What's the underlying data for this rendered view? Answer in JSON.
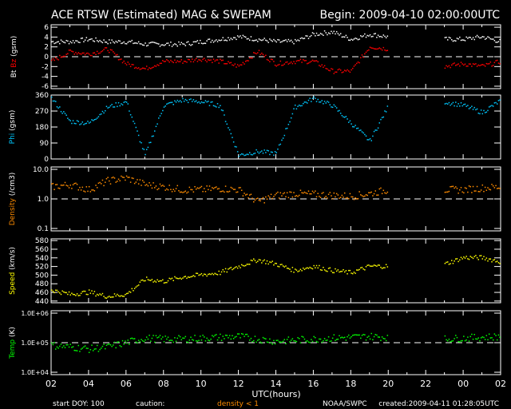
{
  "chart_data": {
    "type": "scatter",
    "title": "ACE RTSW (Estimated) MAG & SWEPAM",
    "begin": "Begin: 2009-04-10 02:00:00UTC",
    "xlabel": "UTC(hours)",
    "x_hours": [
      0,
      1,
      2,
      3,
      4,
      5,
      6,
      7,
      8,
      9,
      10,
      11,
      12,
      13,
      14,
      15,
      16,
      17,
      18,
      19,
      20,
      21,
      22,
      23,
      24
    ],
    "x_tick_labels": [
      "02",
      "04",
      "06",
      "08",
      "10",
      "12",
      "14",
      "16",
      "18",
      "20",
      "22",
      "00",
      "02"
    ],
    "panels": [
      {
        "id": "mag",
        "ylabel_parts": [
          "Bt",
          "Bz",
          "(gsm)"
        ],
        "scale": "linear",
        "ylim": [
          -6.5,
          6.5
        ],
        "ticks": [
          6,
          4,
          2,
          0,
          -2,
          -4,
          -6
        ],
        "tick_labels": [
          "6",
          "4",
          "2",
          "0",
          "-2",
          "-4",
          "-6"
        ],
        "ref": 0,
        "series": [
          {
            "name": "Bt",
            "color": "#ffffff",
            "values": [
              3,
              3,
              3.5,
              3,
              3,
              2.5,
              2.5,
              2.5,
              3,
              3.5,
              4,
              3.5,
              3,
              3,
              4.5,
              5,
              3.5,
              4.5,
              4,
              null,
              null,
              3.5,
              3.5,
              4,
              3
            ]
          },
          {
            "name": "Bz",
            "color": "#ff0000",
            "values": [
              -1,
              1,
              0.5,
              1.5,
              -1.5,
              -2.5,
              -1,
              -1,
              -0.5,
              -1,
              -2,
              1,
              -1.5,
              -1,
              -1,
              -3,
              -3,
              2,
              1.5,
              null,
              null,
              -2,
              -1.5,
              -2,
              -1
            ]
          }
        ]
      },
      {
        "id": "phi",
        "ylabel_parts": [
          "Phi",
          "(gsm)"
        ],
        "scale": "linear",
        "ylim": [
          0,
          360
        ],
        "ticks": [
          360,
          270,
          180,
          90,
          0
        ],
        "tick_labels": [
          "360",
          "270",
          "180",
          "90",
          "0"
        ],
        "ref": null,
        "series": [
          {
            "name": "Phi",
            "color": "#00c8ff",
            "values": [
              340,
              210,
              200,
              290,
              320,
              20,
              300,
              330,
              320,
              300,
              20,
              40,
              30,
              290,
              340,
              300,
              200,
              100,
              300,
              null,
              null,
              320,
              300,
              260,
              330
            ]
          }
        ]
      },
      {
        "id": "density",
        "ylabel_parts": [
          "Density",
          "(/cm3)"
        ],
        "scale": "log",
        "ylim": [
          0.1,
          10
        ],
        "ticks": [
          10,
          1,
          0.1
        ],
        "tick_labels": [
          "10.0",
          "1.0",
          "0.1"
        ],
        "ref": 1,
        "series": [
          {
            "name": "Density",
            "color": "#ff8c00",
            "values": [
              2.5,
              3,
              2,
              4,
              5,
              3,
              2.5,
              2,
              2,
              2.2,
              2,
              0.8,
              1.3,
              1.5,
              1.4,
              1.3,
              1.2,
              1.5,
              2,
              null,
              null,
              2,
              2,
              2.3,
              2.5
            ]
          }
        ]
      },
      {
        "id": "speed",
        "ylabel_parts": [
          "Speed",
          "(km/s)"
        ],
        "scale": "linear",
        "ylim": [
          436,
          584
        ],
        "ticks": [
          580,
          560,
          540,
          520,
          500,
          480,
          460,
          440
        ],
        "tick_labels": [
          "580",
          "560",
          "540",
          "520",
          "500",
          "480",
          "460",
          "440"
        ],
        "ref": null,
        "series": [
          {
            "name": "Speed",
            "color": "#ffff00",
            "values": [
              465,
              455,
              460,
              450,
              455,
              490,
              485,
              495,
              500,
              505,
              520,
              535,
              525,
              510,
              520,
              510,
              505,
              520,
              520,
              null,
              null,
              525,
              540,
              540,
              530
            ]
          }
        ]
      },
      {
        "id": "temp",
        "ylabel_parts": [
          "Temp",
          "(K)"
        ],
        "scale": "log",
        "ylim": [
          10000,
          1000000
        ],
        "ticks": [
          1000000,
          100000,
          10000
        ],
        "tick_labels": [
          "1.0E+06",
          "1.0E+05",
          "1.0E+04"
        ],
        "ref": 100000,
        "series": [
          {
            "name": "Temp",
            "color": "#00ff00",
            "values": [
              80000,
              70000,
              60000,
              70000,
              100000,
              140000,
              130000,
              130000,
              140000,
              150000,
              160000,
              130000,
              110000,
              120000,
              130000,
              140000,
              150000,
              160000,
              150000,
              null,
              null,
              130000,
              140000,
              150000,
              160000
            ]
          }
        ]
      }
    ]
  },
  "footer": {
    "start_doy": "start DOY: 100",
    "caution": "caution:",
    "density_note": "density < 1",
    "source": "NOAA/SWPC",
    "created": "created:2009-04-11 01:28:05UTC"
  },
  "colors": {
    "bz": "#ff0000",
    "phi": "#00c8ff",
    "density": "#ff8c00"
  }
}
